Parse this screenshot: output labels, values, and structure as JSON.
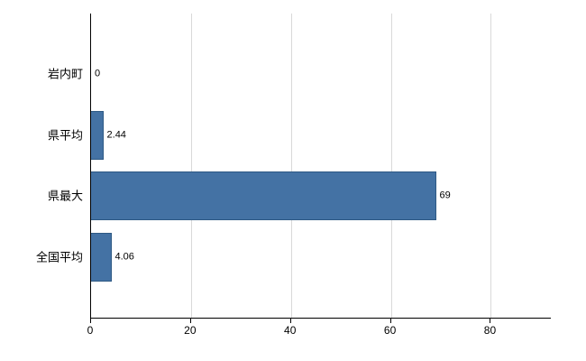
{
  "chart_data": {
    "type": "bar",
    "orientation": "horizontal",
    "title": "",
    "categories": [
      "岩内町",
      "県平均",
      "県最大",
      "全国平均"
    ],
    "values": [
      0,
      2.44,
      69,
      4.06
    ],
    "value_labels": [
      "0",
      "2.44",
      "69",
      "4.06"
    ],
    "x_ticks": [
      0,
      20,
      40,
      60,
      80
    ],
    "xlim": [
      0,
      92
    ],
    "grid": true,
    "legend": false,
    "bar_color": "#4472a4",
    "bar_border_color": "#2e5984",
    "gridline_color": "#d9d9d9",
    "axis_color": "#000000",
    "background_color": "#ffffff"
  }
}
